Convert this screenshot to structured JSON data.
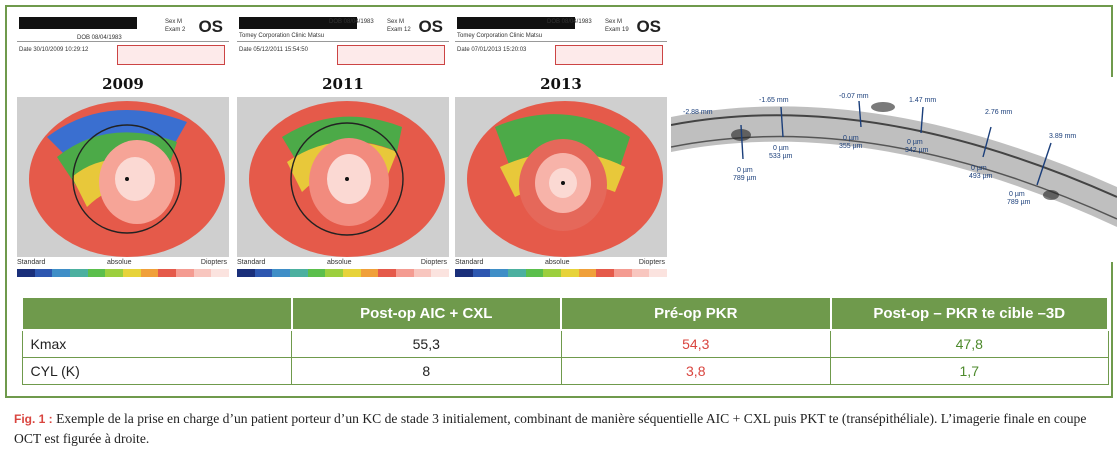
{
  "panels": [
    {
      "os": "OS",
      "header_line1": "DOB 08/04/1983",
      "header_sex": "Sex M",
      "header_exam": "Exam 2",
      "date_line": "Date 30/10/2009 10:29:12",
      "year": "2009",
      "foot_left": "Standard",
      "foot_mid": "absolue",
      "foot_right": "Diopters"
    },
    {
      "os": "OS",
      "header_line1": "DOB 08/04/1983",
      "header_sex": "Sex M",
      "header_exam": "Exam 12",
      "date_line": "Date 05/12/2011 15:54:50",
      "org_line": "Tomey Corporation Clinic Matsu",
      "year": "2011",
      "foot_left": "Standard",
      "foot_mid": "absolue",
      "foot_right": "Diopters"
    },
    {
      "os": "OS",
      "header_line1": "DOB 08/04/1983",
      "header_sex": "Sex M",
      "header_exam": "Exam 19",
      "date_line": "Date 07/01/2013 15:20:03",
      "org_line": "Tomey Corporation Clinic Matsu",
      "year": "2013",
      "foot_left": "Standard",
      "foot_mid": "absolue",
      "foot_right": "Diopters"
    }
  ],
  "oct": {
    "labels": [
      "-2.88 mm",
      "-1.65 mm",
      "-0.07 mm",
      "1.47 mm",
      "2.76 mm",
      "3.89 mm",
      "0 µm",
      "533 µm",
      "0 µm",
      "355 µm",
      "0 µm",
      "342 µm",
      "0 µm",
      "493 µm",
      "0 µm",
      "789 µm",
      "0 µm",
      "789 µm"
    ]
  },
  "table": {
    "headers": [
      "",
      "Post-op AIC + CXL",
      "Pré-op PKR",
      "Post-op – PKR te cible –3D"
    ],
    "rows": [
      {
        "label": "Kmax",
        "values": [
          "55,3",
          "54,3",
          "47,8"
        ]
      },
      {
        "label": "CYL (K)",
        "values": [
          "8",
          "3,8",
          "1,7"
        ]
      }
    ]
  },
  "caption": {
    "fig_label": "Fig. 1 :",
    "text": "Exemple de la prise en charge d’un patient porteur d’un KC de stade 3 initialement, combinant de manière séquentielle AIC + CXL puis PKT te (transépithéliale). L’imagerie finale en coupe OCT est figurée à droite."
  },
  "colors": {
    "frame_green": "#6f9a4c",
    "red_value": "#d9453f",
    "green_value": "#4d8a2c"
  }
}
